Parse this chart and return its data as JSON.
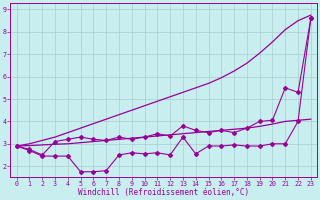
{
  "xlabel": "Windchill (Refroidissement éolien,°C)",
  "bg_color": "#c8eef0",
  "line_color": "#990099",
  "x": [
    0,
    1,
    2,
    3,
    4,
    5,
    6,
    7,
    8,
    9,
    10,
    11,
    12,
    13,
    14,
    15,
    16,
    17,
    18,
    19,
    20,
    21,
    22,
    23
  ],
  "upper_data": [
    2.9,
    2.75,
    2.5,
    3.1,
    3.2,
    3.3,
    3.2,
    3.15,
    3.3,
    3.2,
    3.3,
    3.45,
    3.35,
    3.8,
    3.6,
    3.5,
    3.6,
    3.5,
    3.7,
    4.0,
    4.05,
    5.5,
    5.3,
    8.6
  ],
  "lower_data": [
    2.9,
    2.7,
    2.45,
    2.45,
    2.45,
    1.75,
    1.75,
    1.8,
    2.5,
    2.6,
    2.55,
    2.6,
    2.5,
    3.3,
    2.55,
    2.9,
    2.9,
    2.95,
    2.9,
    2.9,
    3.0,
    3.0,
    4.0,
    8.6
  ],
  "smooth_upper": [
    2.9,
    3.0,
    3.15,
    3.3,
    3.5,
    3.7,
    3.9,
    4.1,
    4.3,
    4.5,
    4.7,
    4.9,
    5.1,
    5.3,
    5.5,
    5.7,
    5.95,
    6.25,
    6.6,
    7.05,
    7.55,
    8.1,
    8.5,
    8.75
  ],
  "smooth_lower": [
    2.9,
    2.92,
    2.95,
    2.98,
    3.0,
    3.05,
    3.1,
    3.15,
    3.2,
    3.25,
    3.3,
    3.35,
    3.4,
    3.45,
    3.5,
    3.55,
    3.6,
    3.65,
    3.7,
    3.78,
    3.88,
    4.0,
    4.05,
    4.1
  ],
  "xlim": [
    -0.5,
    23.5
  ],
  "ylim": [
    1.5,
    9.3
  ],
  "yticks": [
    2,
    3,
    4,
    5,
    6,
    7,
    8,
    9
  ],
  "xticks": [
    0,
    1,
    2,
    3,
    4,
    5,
    6,
    7,
    8,
    9,
    10,
    11,
    12,
    13,
    14,
    15,
    16,
    17,
    18,
    19,
    20,
    21,
    22,
    23
  ],
  "grid_color": "#aacccc",
  "xlabel_fontsize": 5.5,
  "tick_fontsize": 4.8
}
